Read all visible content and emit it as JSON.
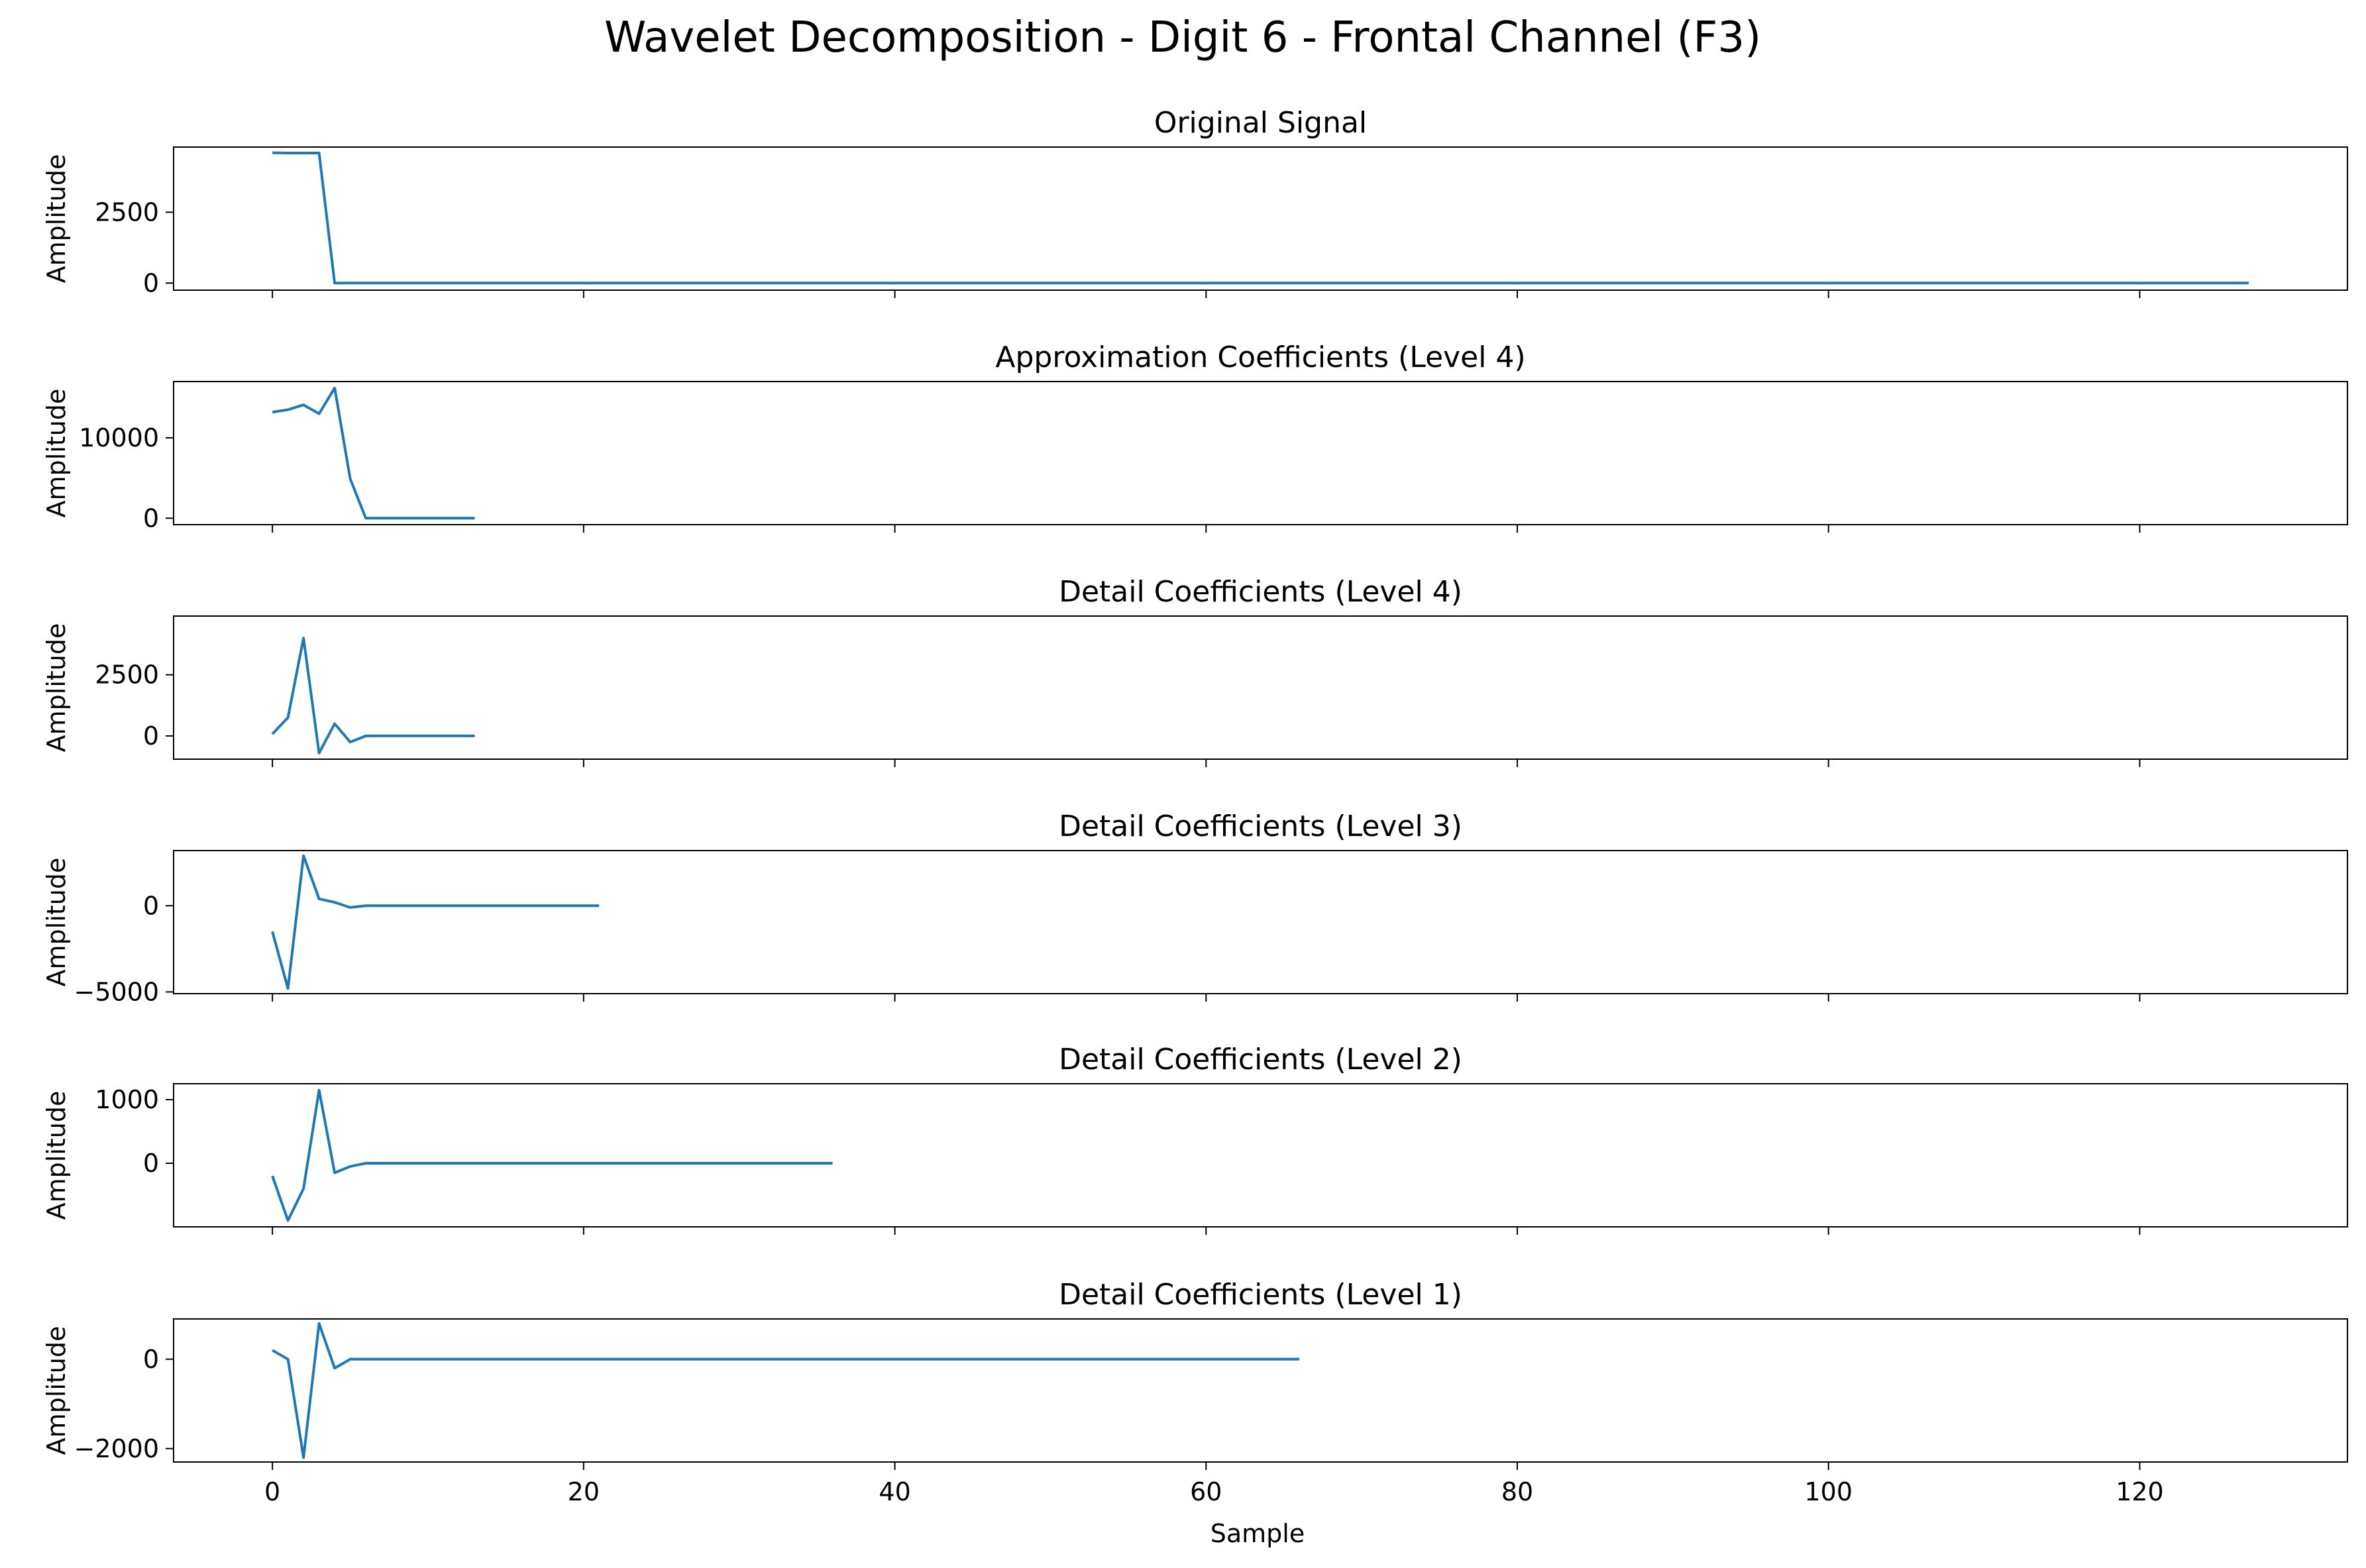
{
  "figure": {
    "title": "Wavelet Decomposition - Digit 6 - Frontal Channel (F3)",
    "xlabel": "Sample",
    "xticks": [
      0,
      20,
      40,
      60,
      80,
      100,
      120
    ],
    "xlim": [
      -6.35,
      133.35
    ],
    "line_color": "#1f77b4"
  },
  "chart_data": [
    {
      "type": "line",
      "title": "Original Signal",
      "ylabel": "Amplitude",
      "ylim": [
        -250,
        4800
      ],
      "yticks": [
        0,
        2500
      ],
      "x_start": 0,
      "x_end": 127,
      "values": [
        4600,
        4590,
        4590,
        4590,
        0
      ],
      "tail_value": 0
    },
    {
      "type": "line",
      "title": "Approximation Coefficients (Level 4)",
      "ylabel": "Amplitude",
      "ylim": [
        -800,
        17000
      ],
      "yticks": [
        0,
        10000
      ],
      "x_start": 0,
      "x_end": 13,
      "values": [
        13200,
        13500,
        14100,
        13000,
        16200,
        4900,
        0
      ],
      "tail_value": 0
    },
    {
      "type": "line",
      "title": "Detail Coefficients (Level 4)",
      "ylabel": "Amplitude",
      "ylim": [
        -950,
        4900
      ],
      "yticks": [
        0,
        2500
      ],
      "x_start": 0,
      "x_end": 13,
      "values": [
        80,
        750,
        4000,
        -700,
        500,
        -250,
        0
      ],
      "tail_value": 0
    },
    {
      "type": "line",
      "title": "Detail Coefficients (Level 3)",
      "ylabel": "Amplitude",
      "ylim": [
        -5100,
        3200
      ],
      "yticks": [
        0,
        -5000
      ],
      "x_start": 0,
      "x_end": 21,
      "values": [
        -1500,
        -4800,
        2900,
        400,
        200,
        -100,
        0
      ],
      "tail_value": 0
    },
    {
      "type": "line",
      "title": "Detail Coefficients (Level 2)",
      "ylabel": "Amplitude",
      "ylim": [
        -1000,
        1250
      ],
      "yticks": [
        0,
        1000
      ],
      "x_start": 0,
      "x_end": 36,
      "values": [
        -200,
        -900,
        -400,
        1150,
        -150,
        -50,
        0
      ],
      "tail_value": 0
    },
    {
      "type": "line",
      "title": "Detail Coefficients (Level 1)",
      "ylabel": "Amplitude",
      "ylim": [
        -2300,
        900
      ],
      "yticks": [
        0,
        -2000
      ],
      "x_start": 0,
      "x_end": 66,
      "values": [
        200,
        0,
        -2200,
        800,
        -200,
        0
      ],
      "tail_value": 0
    }
  ]
}
